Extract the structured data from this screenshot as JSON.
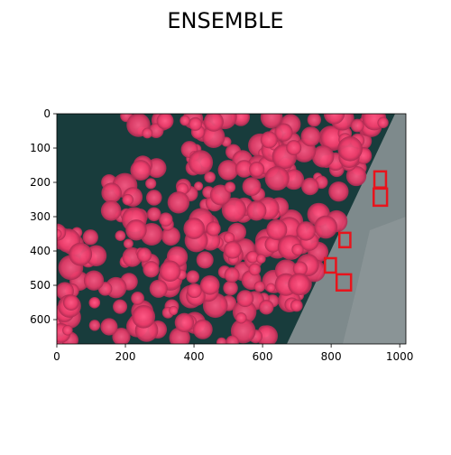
{
  "chart_data": {
    "type": "image",
    "title": "ENSEMBLE",
    "xlim": [
      0,
      1018
    ],
    "ylim": [
      671,
      0
    ],
    "xticks": [
      0,
      200,
      400,
      600,
      800,
      1000
    ],
    "yticks": [
      0,
      100,
      200,
      300,
      400,
      500,
      600
    ],
    "box_color": "#e8141c",
    "boxes": [
      [
        926,
        168,
        34,
        47
      ],
      [
        924,
        218,
        39,
        50
      ],
      [
        824,
        347,
        32,
        42
      ],
      [
        782,
        421,
        32,
        42
      ],
      [
        816,
        468,
        42,
        47
      ]
    ]
  }
}
